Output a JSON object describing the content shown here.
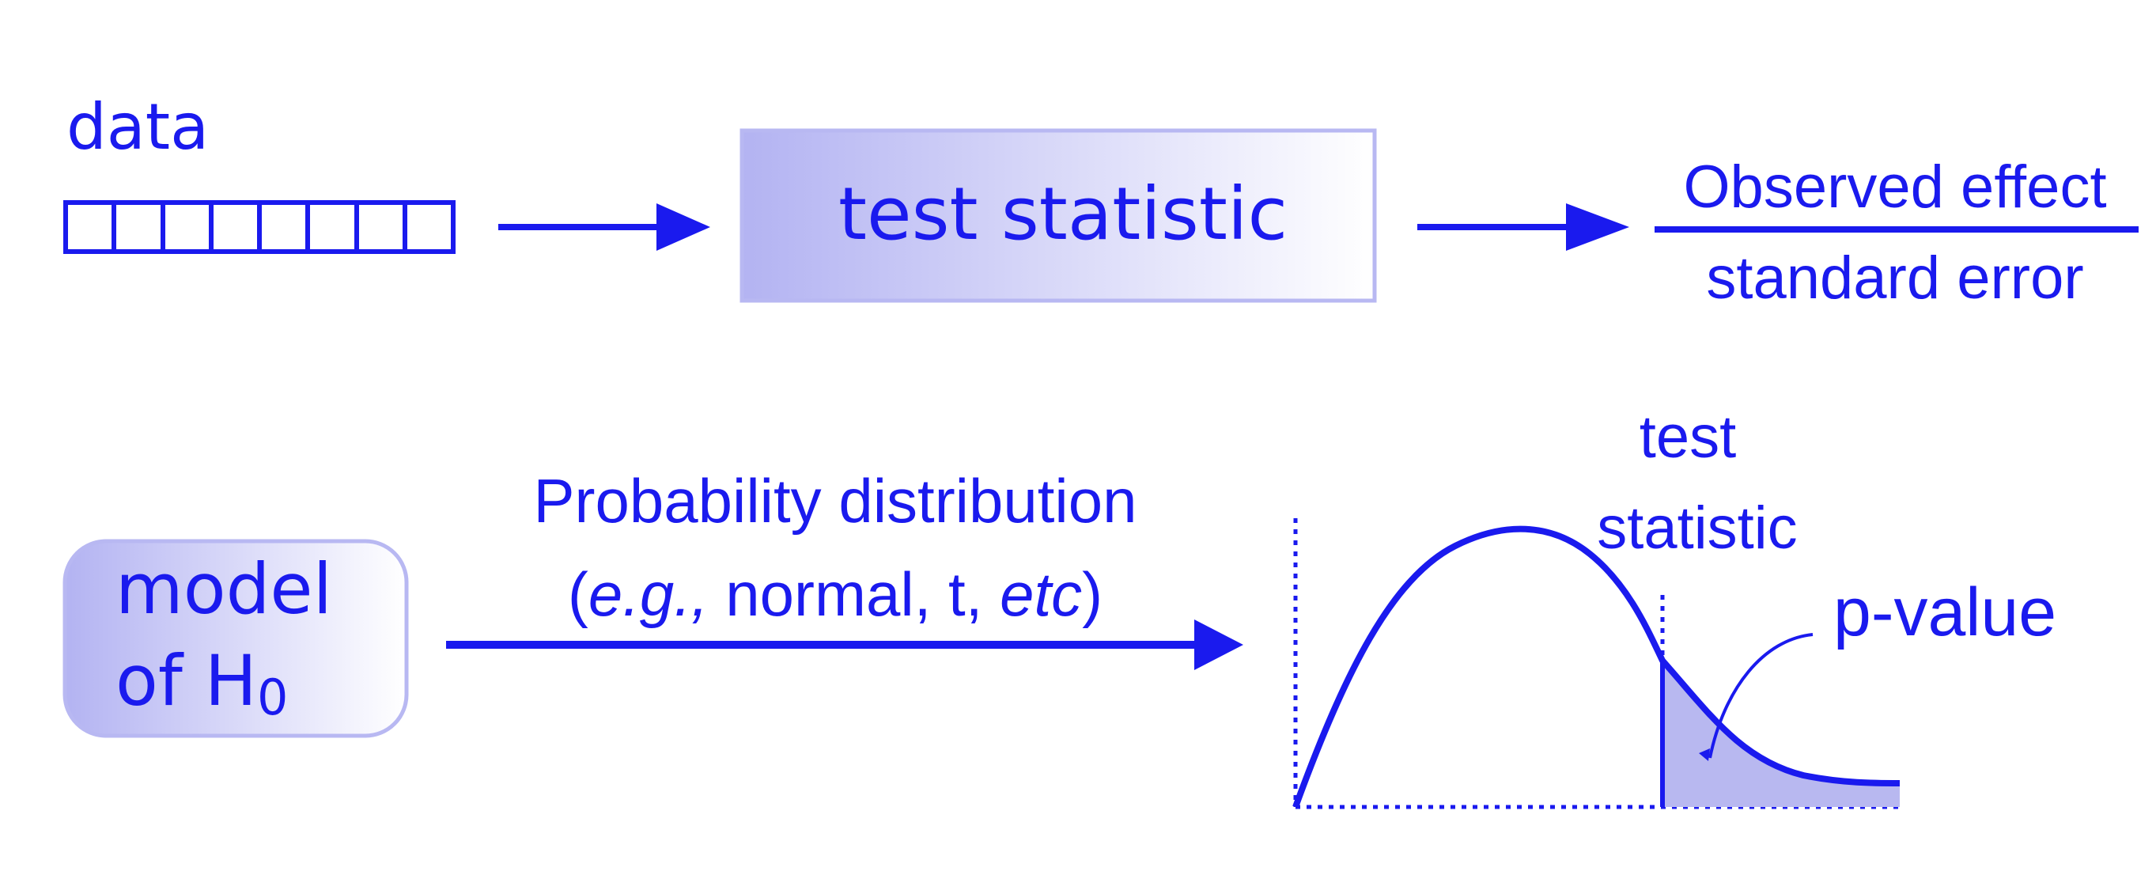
{
  "colors": {
    "primary": "#1a1aee",
    "box_fill_start": "#b3b3f2",
    "box_fill_end": "#ffffff",
    "tail_fill": "#b8b8f0"
  },
  "data_label": "data",
  "test_statistic_box": "test statistic",
  "fraction": {
    "numerator": "Observed effect",
    "denominator": "standard error"
  },
  "model_box": {
    "line1": "model",
    "line2_prefix": "of H",
    "line2_subscript": "0"
  },
  "arrow_label": {
    "line1": "Probability distribution",
    "line2_open": "(",
    "line2_italic1": "e.g.,",
    "line2_middle": " normal, t, ",
    "line2_italic2": "etc",
    "line2_close": ")"
  },
  "curve_labels": {
    "test_stat_line1": "test",
    "test_stat_line2": "statistic",
    "p_value": "p-value"
  }
}
